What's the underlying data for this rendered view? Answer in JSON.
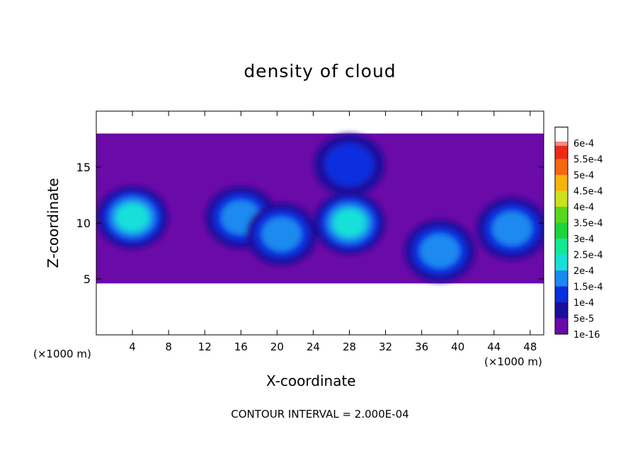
{
  "chart_data": {
    "type": "heatmap",
    "title": "density of cloud",
    "xlabel": "X-coordinate",
    "ylabel": "Z-coordinate",
    "x_unit_label": "(×1000 m)",
    "footer": "CONTOUR INTERVAL = 2.000E-04",
    "xlim": [
      0,
      49.5
    ],
    "ylim": [
      0,
      20
    ],
    "x_ticks": [
      4,
      8,
      12,
      16,
      20,
      24,
      28,
      32,
      36,
      40,
      44,
      48
    ],
    "y_ticks": [
      5,
      10,
      15
    ],
    "colorbar": {
      "levels": [
        "1e-16",
        "5e-5",
        "1e-4",
        "1.5e-4",
        "2e-4",
        "2.5e-4",
        "3e-4",
        "3.5e-4",
        "4e-4",
        "4.5e-4",
        "5e-4",
        "5.5e-4",
        "6e-4"
      ],
      "colors": [
        "#6a0aa8",
        "#1a0f9c",
        "#0a2ee0",
        "#1a8af0",
        "#16e0d8",
        "#12e896",
        "#1cd43c",
        "#58d81c",
        "#cce11a",
        "#f7b20e",
        "#f76710",
        "#ee2a16",
        "#f48888"
      ]
    },
    "cloud_extent": {
      "z_bottom": 4.6,
      "z_top": 18
    },
    "cloud_regions": [
      {
        "x": 4,
        "z": 10.5,
        "level": "2e-4"
      },
      {
        "x": 16,
        "z": 10.5,
        "level": "1.5e-4"
      },
      {
        "x": 20.5,
        "z": 9,
        "level": "1.5e-4"
      },
      {
        "x": 28,
        "z": 10,
        "level": "2e-4"
      },
      {
        "x": 28,
        "z": 15.2,
        "level": "1e-4"
      },
      {
        "x": 38,
        "z": 7.5,
        "level": "1.5e-4"
      },
      {
        "x": 46,
        "z": 9.5,
        "level": "1.5e-4"
      }
    ]
  }
}
